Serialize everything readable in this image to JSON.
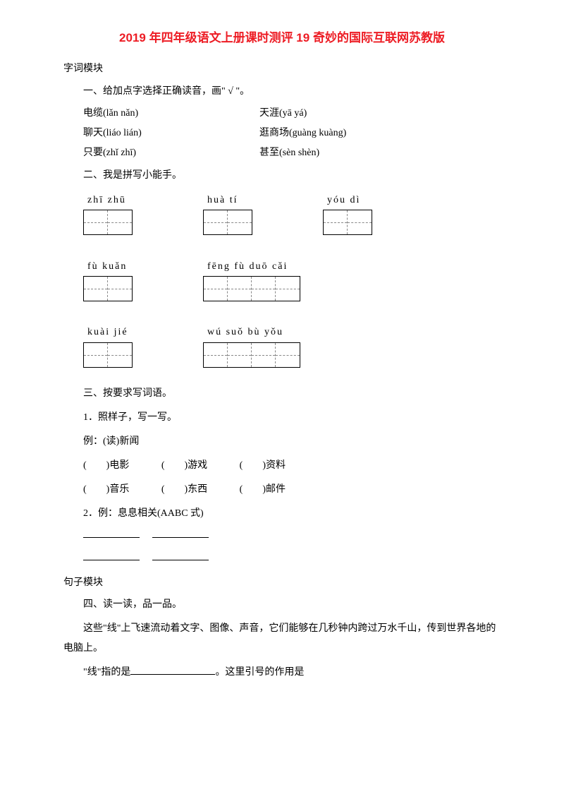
{
  "title": "2019 年四年级语文上册课时测评 19 奇妙的国际互联网苏教版",
  "sections": {
    "ziCi": "字词模块",
    "q1_heading": "一、给加点字选择正确读音，画\" √ \"。",
    "q1_rows": [
      {
        "left": "电缆(lǎn  nǎn)",
        "right": "天涯(yā  yá)"
      },
      {
        "left": "聊天(liáo  lián)",
        "right": "逛商场(guàng  kuàng)"
      },
      {
        "left": "只要(zhǐ  zhī)",
        "right": "甚至(sèn  shèn)"
      }
    ],
    "q2_heading": "二、我是拼写小能手。",
    "pinyin_rows": [
      [
        {
          "pinyin": "zhī  zhū",
          "cells": 2
        },
        {
          "pinyin": "huà   tí",
          "cells": 2
        },
        {
          "pinyin": "yóu   dì",
          "cells": 2
        }
      ],
      [
        {
          "pinyin": "fù   kuǎn",
          "cells": 2
        },
        {
          "pinyin": "fēng  fù  duō  cǎi",
          "cells": 4
        }
      ],
      [
        {
          "pinyin": "kuài  jié",
          "cells": 2
        },
        {
          "pinyin": "wú  suǒ  bù  yǒu",
          "cells": 4
        }
      ]
    ],
    "q3_heading": "三、按要求写词语。",
    "q3_1": "1．照样子，写一写。",
    "q3_example": "例：(读)新闻",
    "q3_items_row1": [
      "(　　)电影",
      "(　　)游戏",
      "(　　)资料"
    ],
    "q3_items_row2": [
      "(　　)音乐",
      "(　　)东西",
      "(　　)邮件"
    ],
    "q3_2": "2．例：息息相关(AABC 式)",
    "juzi": "句子模块",
    "q4_heading": "四、读一读，品一品。",
    "q4_text": "这些\"线\"上飞速流动着文字、图像、声音，它们能够在几秒钟内跨过万水千山，传到世界各地的电脑上。",
    "q4_q_pre": "\"线\"指的是",
    "q4_q_post": "。这里引号的作用是"
  },
  "colors": {
    "title": "#ed1c24",
    "text": "#000000",
    "bg": "#ffffff"
  }
}
